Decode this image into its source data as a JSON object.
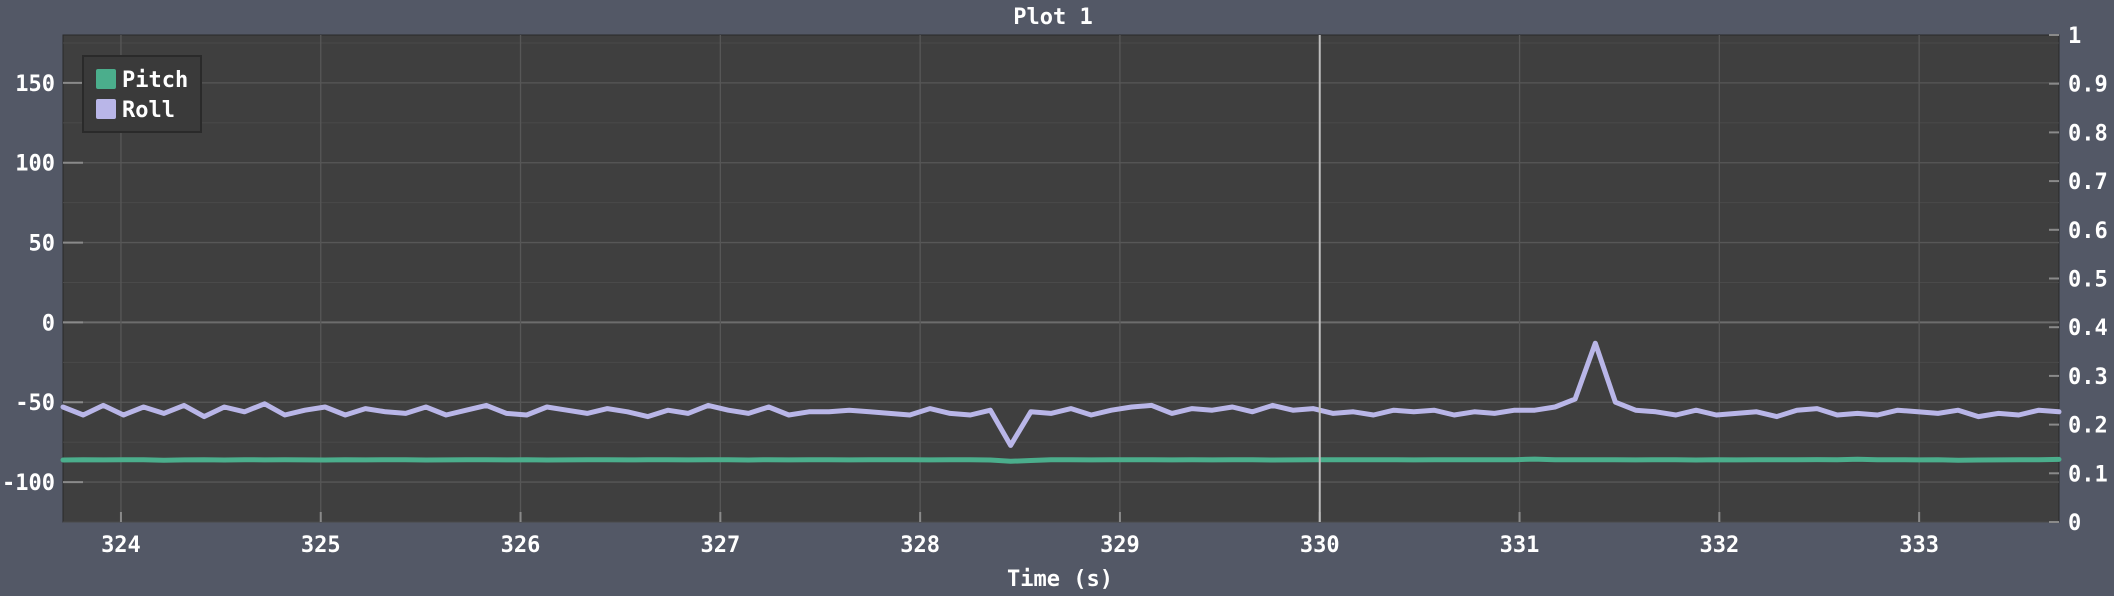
{
  "window": {
    "background": "#535866",
    "plot_background": "#3f3f3f"
  },
  "chart_data": {
    "type": "line",
    "title": "Plot 1",
    "xlabel": "Time (s)",
    "ylabel": "",
    "y2label": "",
    "xlim": [
      323.71,
      333.7
    ],
    "ylim": [
      -125,
      180
    ],
    "y2lim": [
      0,
      1
    ],
    "xticks": [
      "324",
      "325",
      "326",
      "327",
      "328",
      "329",
      "330",
      "331",
      "332",
      "333"
    ],
    "yticks": [
      "150",
      "100",
      "50",
      "0",
      "-50",
      "-100"
    ],
    "y2ticks": [
      "1",
      "0.9",
      "0.8",
      "0.7",
      "0.6",
      "0.5",
      "0.4",
      "0.3",
      "0.2",
      "0.1",
      "0"
    ],
    "grid": true,
    "legend": {
      "placement": "top-left"
    },
    "cursor_x": 330,
    "series": [
      {
        "name": "Pitch",
        "color": "#4bae8c",
        "samples": 100,
        "values": [
          -86.2,
          -86.0,
          -86.1,
          -86.0,
          -86.0,
          -86.3,
          -86.1,
          -86.0,
          -86.2,
          -86.0,
          -86.1,
          -86.0,
          -86.1,
          -86.2,
          -86.0,
          -86.1,
          -86.0,
          -86.0,
          -86.2,
          -86.1,
          -86.0,
          -86.0,
          -86.1,
          -86.0,
          -86.2,
          -86.1,
          -86.0,
          -86.0,
          -86.1,
          -86.0,
          -86.0,
          -86.1,
          -86.0,
          -86.0,
          -86.2,
          -86.0,
          -86.1,
          -86.0,
          -86.0,
          -86.1,
          -86.0,
          -86.0,
          -86.0,
          -86.1,
          -86.0,
          -86.0,
          -86.2,
          -87.0,
          -86.5,
          -86.0,
          -86.0,
          -86.1,
          -86.0,
          -86.0,
          -86.0,
          -86.1,
          -86.0,
          -86.1,
          -86.0,
          -86.0,
          -86.2,
          -86.1,
          -86.0,
          -86.0,
          -86.0,
          -86.0,
          -86.0,
          -86.1,
          -86.0,
          -86.0,
          -86.0,
          -86.0,
          -86.0,
          -85.6,
          -86.0,
          -86.0,
          -86.0,
          -86.0,
          -86.1,
          -86.0,
          -86.0,
          -86.2,
          -86.0,
          -86.1,
          -86.0,
          -86.0,
          -86.0,
          -85.9,
          -86.0,
          -85.7,
          -86.0,
          -86.0,
          -86.1,
          -86.0,
          -86.3,
          -86.2,
          -86.1,
          -86.0,
          -86.0,
          -85.8
        ]
      },
      {
        "name": "Roll",
        "color": "#b9b6e8",
        "samples": 100,
        "values": [
          -53,
          -58,
          -52,
          -58,
          -53,
          -57,
          -52,
          -59,
          -53,
          -56,
          -51,
          -58,
          -55,
          -53,
          -58,
          -54,
          -56,
          -57,
          -53,
          -58,
          -55,
          -52,
          -57,
          -58,
          -53,
          -55,
          -57,
          -54,
          -56,
          -59,
          -55,
          -57,
          -52,
          -55,
          -57,
          -53,
          -58,
          -56,
          -56,
          -55,
          -56,
          -57,
          -58,
          -54,
          -57,
          -58,
          -55,
          -77,
          -56,
          -57,
          -54,
          -58,
          -55,
          -53,
          -52,
          -57,
          -54,
          -55,
          -53,
          -56,
          -52,
          -55,
          -54,
          -57,
          -56,
          -58,
          -55,
          -56,
          -55,
          -58,
          -56,
          -57,
          -55,
          -55,
          -53,
          -48,
          -13,
          -50,
          -55,
          -56,
          -58,
          -55,
          -58,
          -57,
          -56,
          -59,
          -55,
          -54,
          -58,
          -57,
          -58,
          -55,
          -56,
          -57,
          -55,
          -59,
          -57,
          -58,
          -55,
          -56
        ]
      }
    ]
  }
}
